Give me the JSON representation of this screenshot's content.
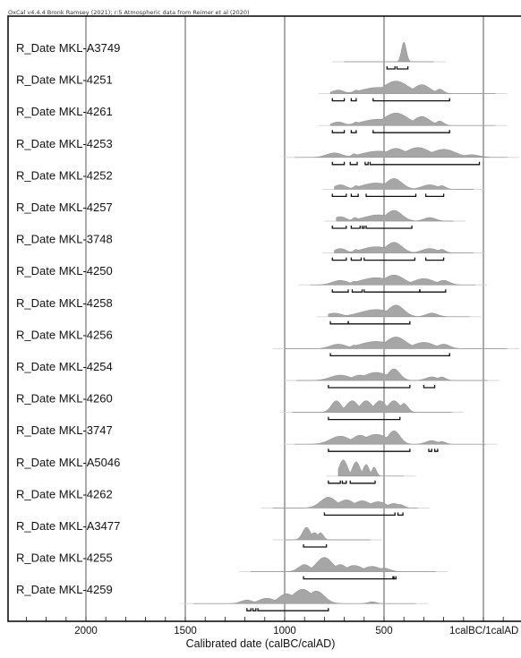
{
  "header": "OxCal v4.4.4 Bronk Ramsey (2021); r:5 Atmospheric data from Reimer et al (2020)",
  "chart_data": {
    "type": "multiple-plot",
    "xlabel": "Calibrated date (calBC/calAD)",
    "x_ticks": [
      {
        "value": -2000,
        "label": "2000"
      },
      {
        "value": -1500,
        "label": "1500"
      },
      {
        "value": -1000,
        "label": "1000"
      },
      {
        "value": -500,
        "label": "500"
      },
      {
        "value": 0,
        "label": "1calBC/1calAD"
      }
    ],
    "xlim": [
      -2400,
      200
    ],
    "grid": true,
    "distributions": [
      {
        "label": "R_Date MKL-A3749",
        "range": [
          -760,
          -190
        ],
        "peaks": [
          [
            -400,
            12,
            22
          ]
        ],
        "hpd": [
          [
            -485,
            -445
          ],
          [
            -435,
            -380
          ]
        ]
      },
      {
        "label": "R_Date MKL-4251",
        "range": [
          -830,
          120
        ],
        "peaks": [
          [
            -730,
            30,
            4
          ],
          [
            -640,
            15,
            4
          ],
          [
            -530,
            80,
            7
          ],
          [
            -440,
            60,
            14
          ],
          [
            -310,
            40,
            10
          ],
          [
            -220,
            20,
            5
          ]
        ],
        "hpd": [
          [
            -760,
            -700
          ],
          [
            -665,
            -640
          ],
          [
            -555,
            -170
          ]
        ]
      },
      {
        "label": "R_Date MKL-4261",
        "range": [
          -830,
          120
        ],
        "peaks": [
          [
            -730,
            30,
            4
          ],
          [
            -640,
            15,
            4
          ],
          [
            -530,
            80,
            7
          ],
          [
            -440,
            60,
            14
          ],
          [
            -310,
            40,
            10
          ],
          [
            -220,
            20,
            5
          ]
        ],
        "hpd": [
          [
            -760,
            -700
          ],
          [
            -665,
            -640
          ],
          [
            -555,
            -170
          ]
        ]
      },
      {
        "label": "R_Date MKL-4253",
        "range": [
          -1010,
          180
        ],
        "peaks": [
          [
            -750,
            40,
            5
          ],
          [
            -650,
            15,
            4
          ],
          [
            -530,
            80,
            7
          ],
          [
            -440,
            50,
            10
          ],
          [
            -330,
            60,
            11
          ],
          [
            -200,
            60,
            9
          ],
          [
            -60,
            40,
            3
          ]
        ],
        "hpd": [
          [
            -760,
            -700
          ],
          [
            -670,
            -635
          ],
          [
            -595,
            -580
          ],
          [
            -570,
            -20
          ]
        ]
      },
      {
        "label": "R_Date MKL-4252",
        "range": [
          -810,
          10
        ],
        "peaks": [
          [
            -720,
            30,
            5
          ],
          [
            -640,
            15,
            4
          ],
          [
            -540,
            70,
            7
          ],
          [
            -450,
            40,
            12
          ],
          [
            -270,
            40,
            5
          ],
          [
            -210,
            20,
            4
          ]
        ],
        "hpd": [
          [
            -760,
            -690
          ],
          [
            -665,
            -630
          ],
          [
            -590,
            -340
          ],
          [
            -290,
            -200
          ]
        ]
      },
      {
        "label": "R_Date MKL-4257",
        "range": [
          -800,
          -90
        ],
        "peaks": [
          [
            -720,
            30,
            5
          ],
          [
            -645,
            15,
            4
          ],
          [
            -600,
            15,
            3
          ],
          [
            -530,
            70,
            7
          ],
          [
            -450,
            40,
            12
          ],
          [
            -270,
            30,
            4
          ]
        ],
        "hpd": [
          [
            -760,
            -690
          ],
          [
            -665,
            -620
          ],
          [
            -610,
            -600
          ],
          [
            -590,
            -360
          ]
        ]
      },
      {
        "label": "R_Date MKL-3748",
        "range": [
          -810,
          10
        ],
        "peaks": [
          [
            -720,
            30,
            5
          ],
          [
            -640,
            15,
            4
          ],
          [
            -540,
            70,
            7
          ],
          [
            -450,
            40,
            12
          ],
          [
            -270,
            40,
            5
          ],
          [
            -210,
            20,
            4
          ]
        ],
        "hpd": [
          [
            -760,
            -690
          ],
          [
            -665,
            -615
          ],
          [
            -600,
            -345
          ],
          [
            -290,
            -200
          ]
        ]
      },
      {
        "label": "R_Date MKL-4250",
        "range": [
          -930,
          20
        ],
        "peaks": [
          [
            -720,
            40,
            5
          ],
          [
            -650,
            15,
            4
          ],
          [
            -540,
            80,
            8
          ],
          [
            -450,
            50,
            11
          ],
          [
            -300,
            50,
            7
          ],
          [
            -200,
            30,
            5
          ]
        ],
        "hpd": [
          [
            -760,
            -680
          ],
          [
            -660,
            -610
          ],
          [
            -600,
            -320
          ],
          [
            -320,
            -190
          ]
        ]
      },
      {
        "label": "R_Date MKL-4258",
        "range": [
          -840,
          -10
        ],
        "peaks": [
          [
            -750,
            40,
            4
          ],
          [
            -650,
            15,
            3
          ],
          [
            -540,
            80,
            8
          ],
          [
            -440,
            40,
            13
          ],
          [
            -260,
            30,
            4
          ]
        ],
        "hpd": [
          [
            -770,
            -680
          ],
          [
            -680,
            -370
          ]
        ]
      },
      {
        "label": "R_Date MKL-4256",
        "range": [
          -1060,
          180
        ],
        "peaks": [
          [
            -730,
            40,
            5
          ],
          [
            -650,
            15,
            4
          ],
          [
            -540,
            80,
            8
          ],
          [
            -440,
            50,
            13
          ],
          [
            -300,
            50,
            7
          ],
          [
            -200,
            30,
            5
          ]
        ],
        "hpd": [
          [
            -770,
            -170
          ]
        ]
      },
      {
        "label": "R_Date MKL-4254",
        "range": [
          -1000,
          80
        ],
        "peaks": [
          [
            -720,
            50,
            6
          ],
          [
            -620,
            40,
            6
          ],
          [
            -540,
            60,
            9
          ],
          [
            -450,
            30,
            13
          ],
          [
            -260,
            30,
            4
          ],
          [
            -210,
            20,
            4
          ]
        ],
        "hpd": [
          [
            -780,
            -370
          ],
          [
            -300,
            -245
          ]
        ]
      },
      {
        "label": "R_Date MKL-4260",
        "range": [
          -1020,
          -100
        ],
        "peaks": [
          [
            -740,
            25,
            13
          ],
          [
            -660,
            30,
            13
          ],
          [
            -590,
            30,
            13
          ],
          [
            -520,
            30,
            13
          ],
          [
            -450,
            30,
            13
          ],
          [
            -400,
            20,
            10
          ]
        ],
        "hpd": [
          [
            -780,
            -420
          ]
        ]
      },
      {
        "label": "R_Date MKL-3747",
        "range": [
          -1010,
          70
        ],
        "peaks": [
          [
            -720,
            50,
            9
          ],
          [
            -620,
            40,
            10
          ],
          [
            -540,
            60,
            11
          ],
          [
            -450,
            30,
            15
          ],
          [
            -260,
            30,
            4
          ],
          [
            -210,
            20,
            3
          ]
        ],
        "hpd": [
          [
            -780,
            -370
          ],
          [
            -275,
            -260
          ],
          [
            -245,
            -230
          ]
        ]
      },
      {
        "label": "R_Date MKL-A5046",
        "range": [
          -790,
          -340
        ],
        "peaks": [
          [
            -765,
            12,
            14
          ],
          [
            -705,
            20,
            18
          ],
          [
            -640,
            18,
            16
          ],
          [
            -590,
            15,
            13
          ],
          [
            -550,
            12,
            10
          ]
        ],
        "hpd": [
          [
            -780,
            -720
          ],
          [
            -710,
            -690
          ],
          [
            -670,
            -545
          ]
        ]
      },
      {
        "label": "R_Date MKL-4262",
        "range": [
          -1120,
          -270
        ],
        "peaks": [
          [
            -780,
            40,
            12
          ],
          [
            -690,
            40,
            9
          ],
          [
            -610,
            40,
            8
          ],
          [
            -530,
            40,
            7
          ],
          [
            -450,
            30,
            5
          ],
          [
            -420,
            20,
            4
          ]
        ],
        "hpd": [
          [
            -800,
            -445
          ],
          [
            -430,
            -405
          ]
        ]
      },
      {
        "label": "R_Date MKL-A3477",
        "range": [
          -1060,
          -510
        ],
        "peaks": [
          [
            -890,
            20,
            14
          ],
          [
            -850,
            20,
            8
          ],
          [
            -820,
            15,
            8
          ]
        ],
        "hpd": [
          [
            -905,
            -790
          ]
        ]
      },
      {
        "label": "R_Date MKL-4255",
        "range": [
          -1230,
          -180
        ],
        "peaks": [
          [
            -900,
            30,
            8
          ],
          [
            -800,
            40,
            16
          ],
          [
            -720,
            30,
            8
          ],
          [
            -650,
            40,
            7
          ],
          [
            -560,
            40,
            6
          ],
          [
            -500,
            30,
            4
          ]
        ],
        "hpd": [
          [
            -905,
            -455
          ],
          [
            -450,
            -440
          ]
        ]
      },
      {
        "label": "R_Date MKL-4259",
        "range": [
          -1520,
          -280
        ],
        "peaks": [
          [
            -1190,
            30,
            4
          ],
          [
            -1090,
            40,
            6
          ],
          [
            -990,
            40,
            11
          ],
          [
            -910,
            50,
            16
          ],
          [
            -840,
            40,
            14
          ],
          [
            -560,
            20,
            2
          ]
        ],
        "hpd": [
          [
            -1190,
            -1170
          ],
          [
            -1160,
            -1145
          ],
          [
            -1135,
            -780
          ]
        ]
      }
    ]
  }
}
